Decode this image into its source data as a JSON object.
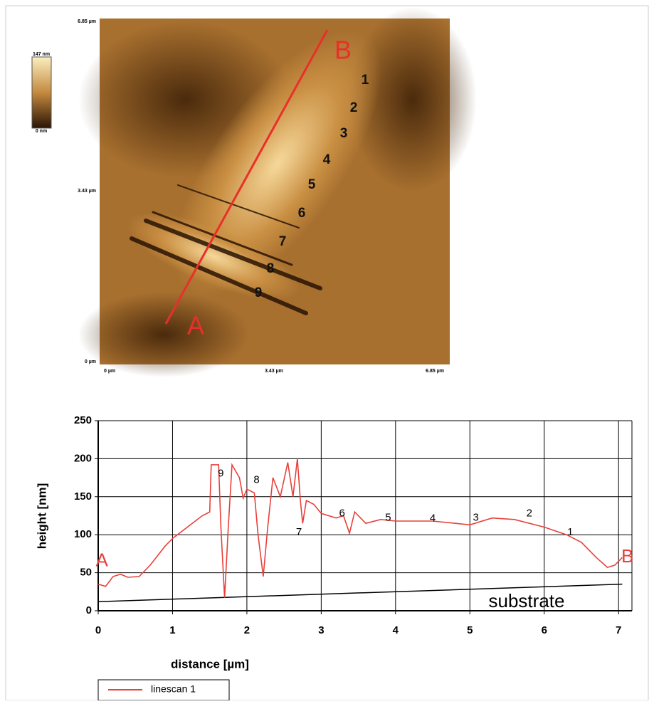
{
  "afm_image": {
    "y_axis_labels": [
      "6.85 µm",
      "3.43 µm",
      "0 µm"
    ],
    "x_axis_labels": [
      "0 µm",
      "3.43 µm",
      "6.85 µm"
    ],
    "colorbar_labels": [
      "147 nm",
      "0 nm"
    ],
    "line_ends": [
      "A",
      "B"
    ],
    "scratch_labels": [
      "1",
      "2",
      "3",
      "4",
      "5",
      "6",
      "7",
      "8",
      "9"
    ]
  },
  "chart_data": {
    "type": "line",
    "x_label": "distance [µm]",
    "y_label": "height [nm]",
    "xlim": [
      0,
      7.18
    ],
    "ylim": [
      0,
      250
    ],
    "xticks": [
      0,
      1,
      2,
      3,
      4,
      5,
      6,
      7
    ],
    "yticks": [
      0,
      50,
      100,
      150,
      200,
      250
    ],
    "grid": true,
    "legend": "lower left",
    "series": [
      {
        "name": "linescan 1",
        "color": "#e8403a",
        "x": [
          0,
          0.1,
          0.2,
          0.3,
          0.4,
          0.55,
          0.7,
          0.9,
          1.0,
          1.2,
          1.4,
          1.5,
          1.52,
          1.62,
          1.65,
          1.7,
          1.75,
          1.8,
          1.9,
          1.95,
          2.0,
          2.1,
          2.15,
          2.22,
          2.28,
          2.35,
          2.45,
          2.55,
          2.62,
          2.68,
          2.72,
          2.75,
          2.8,
          2.9,
          3.0,
          3.2,
          3.3,
          3.38,
          3.45,
          3.5,
          3.6,
          3.8,
          4.0,
          4.5,
          5.0,
          5.3,
          5.6,
          6.0,
          6.3,
          6.5,
          6.7,
          6.85,
          6.95,
          7.05
        ],
        "values": [
          35,
          32,
          45,
          48,
          44,
          45,
          60,
          85,
          95,
          110,
          125,
          130,
          192,
          192,
          110,
          17,
          110,
          192,
          175,
          148,
          160,
          155,
          100,
          45,
          110,
          175,
          150,
          195,
          150,
          200,
          145,
          115,
          145,
          140,
          128,
          122,
          125,
          102,
          130,
          125,
          115,
          120,
          118,
          118,
          113,
          122,
          120,
          110,
          100,
          90,
          70,
          57,
          60,
          70
        ]
      }
    ],
    "substrate_line": {
      "label": "substrate",
      "color": "#000000",
      "x": [
        0,
        7.05
      ],
      "values": [
        12,
        35
      ]
    },
    "annotations": [
      "9",
      "8",
      "7",
      "6",
      "5",
      "4",
      "3",
      "2",
      "1"
    ],
    "end_labels": [
      "A",
      "B"
    ]
  }
}
